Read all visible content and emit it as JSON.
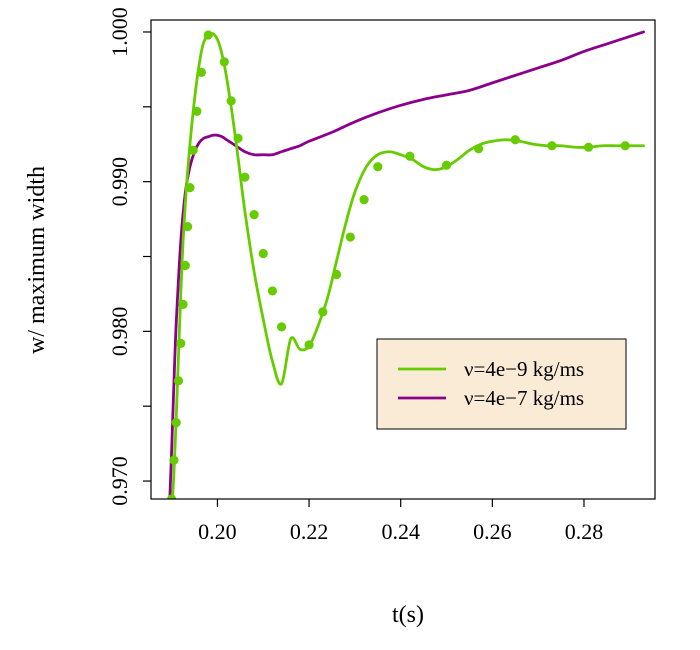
{
  "chart_data": {
    "type": "line",
    "xlabel": "t(s)",
    "ylabel": "w/ maximum width",
    "xlim": [
      0.1855,
      0.2955
    ],
    "ylim": [
      0.9688,
      1.0008
    ],
    "x_ticks": [
      0.2,
      0.22,
      0.24,
      0.26,
      0.28
    ],
    "x_tick_labels": [
      "0.20",
      "0.22",
      "0.24",
      "0.26",
      "0.28"
    ],
    "y_ticks": [
      0.97,
      0.975,
      0.98,
      0.985,
      0.99,
      0.995,
      1.0
    ],
    "y_tick_labels": [
      "0.970",
      "",
      "0.980",
      "",
      "0.990",
      "",
      "1.000"
    ],
    "legend_position": "center-right",
    "legend_background": "#FAEBD7",
    "series": [
      {
        "name": "ν=4e−9 kg/ms",
        "color": "#66CC00",
        "markers": true,
        "x": [
          0.19,
          0.1905,
          0.191,
          0.1915,
          0.192,
          0.1925,
          0.1932,
          0.194,
          0.195,
          0.196,
          0.197,
          0.1985,
          0.2,
          0.2015,
          0.203,
          0.2045,
          0.206,
          0.208,
          0.21,
          0.212,
          0.214,
          0.216,
          0.218,
          0.22,
          0.222,
          0.224,
          0.226,
          0.228,
          0.23,
          0.2325,
          0.235,
          0.2375,
          0.24,
          0.2425,
          0.245,
          0.2475,
          0.25,
          0.2525,
          0.255,
          0.2575,
          0.26,
          0.263,
          0.266,
          0.269,
          0.272,
          0.275,
          0.278,
          0.281,
          0.284,
          0.287,
          0.29,
          0.293
        ],
        "y": [
          0.968,
          0.9705,
          0.9742,
          0.9784,
          0.9825,
          0.986,
          0.9895,
          0.9925,
          0.9955,
          0.9978,
          0.9993,
          0.9999,
          0.9995,
          0.9978,
          0.995,
          0.9916,
          0.988,
          0.984,
          0.9808,
          0.978,
          0.9765,
          0.9795,
          0.9788,
          0.979,
          0.9804,
          0.9822,
          0.9847,
          0.9872,
          0.9893,
          0.991,
          0.9918,
          0.992,
          0.9918,
          0.9915,
          0.991,
          0.9908,
          0.991,
          0.9915,
          0.9921,
          0.9925,
          0.9927,
          0.9928,
          0.9927,
          0.9925,
          0.9924,
          0.9924,
          0.9923,
          0.9923,
          0.9924,
          0.9924,
          0.9924,
          0.9924
        ],
        "marker_x": [
          0.19,
          0.1905,
          0.191,
          0.1915,
          0.192,
          0.1925,
          0.193,
          0.1935,
          0.194,
          0.1947,
          0.1955,
          0.1965,
          0.198,
          0.2015,
          0.203,
          0.2045,
          0.206,
          0.208,
          0.21,
          0.212,
          0.214,
          0.22,
          0.223,
          0.226,
          0.229,
          0.232,
          0.235,
          0.242,
          0.25,
          0.257,
          0.265,
          0.273,
          0.281,
          0.289
        ],
        "marker_y": [
          0.9688,
          0.9714,
          0.9739,
          0.9767,
          0.9792,
          0.9818,
          0.9844,
          0.987,
          0.9896,
          0.9921,
          0.9947,
          0.9973,
          0.9998,
          0.998,
          0.9954,
          0.9929,
          0.9903,
          0.9878,
          0.9852,
          0.9827,
          0.9803,
          0.9791,
          0.9813,
          0.9838,
          0.9863,
          0.9888,
          0.991,
          0.9917,
          0.9911,
          0.9922,
          0.9928,
          0.9924,
          0.9923,
          0.9924
        ]
      },
      {
        "name": "ν=4e−7 kg/ms",
        "color": "#8B008B",
        "markers": false,
        "x": [
          0.1895,
          0.19,
          0.1905,
          0.191,
          0.192,
          0.193,
          0.194,
          0.195,
          0.196,
          0.197,
          0.198,
          0.199,
          0.2,
          0.201,
          0.202,
          0.204,
          0.206,
          0.208,
          0.21,
          0.212,
          0.214,
          0.216,
          0.218,
          0.22,
          0.225,
          0.23,
          0.235,
          0.24,
          0.245,
          0.25,
          0.255,
          0.26,
          0.265,
          0.27,
          0.275,
          0.28,
          0.285,
          0.29,
          0.293
        ],
        "y": [
          0.968,
          0.972,
          0.9765,
          0.9805,
          0.986,
          0.9893,
          0.991,
          0.992,
          0.9926,
          0.9929,
          0.993,
          0.9931,
          0.9931,
          0.993,
          0.9928,
          0.9924,
          0.992,
          0.9918,
          0.9918,
          0.9918,
          0.992,
          0.9922,
          0.9924,
          0.9927,
          0.9933,
          0.994,
          0.9946,
          0.9951,
          0.9955,
          0.9958,
          0.9961,
          0.9966,
          0.9971,
          0.9976,
          0.9981,
          0.9987,
          0.9992,
          0.9997,
          1.0
        ]
      }
    ]
  }
}
